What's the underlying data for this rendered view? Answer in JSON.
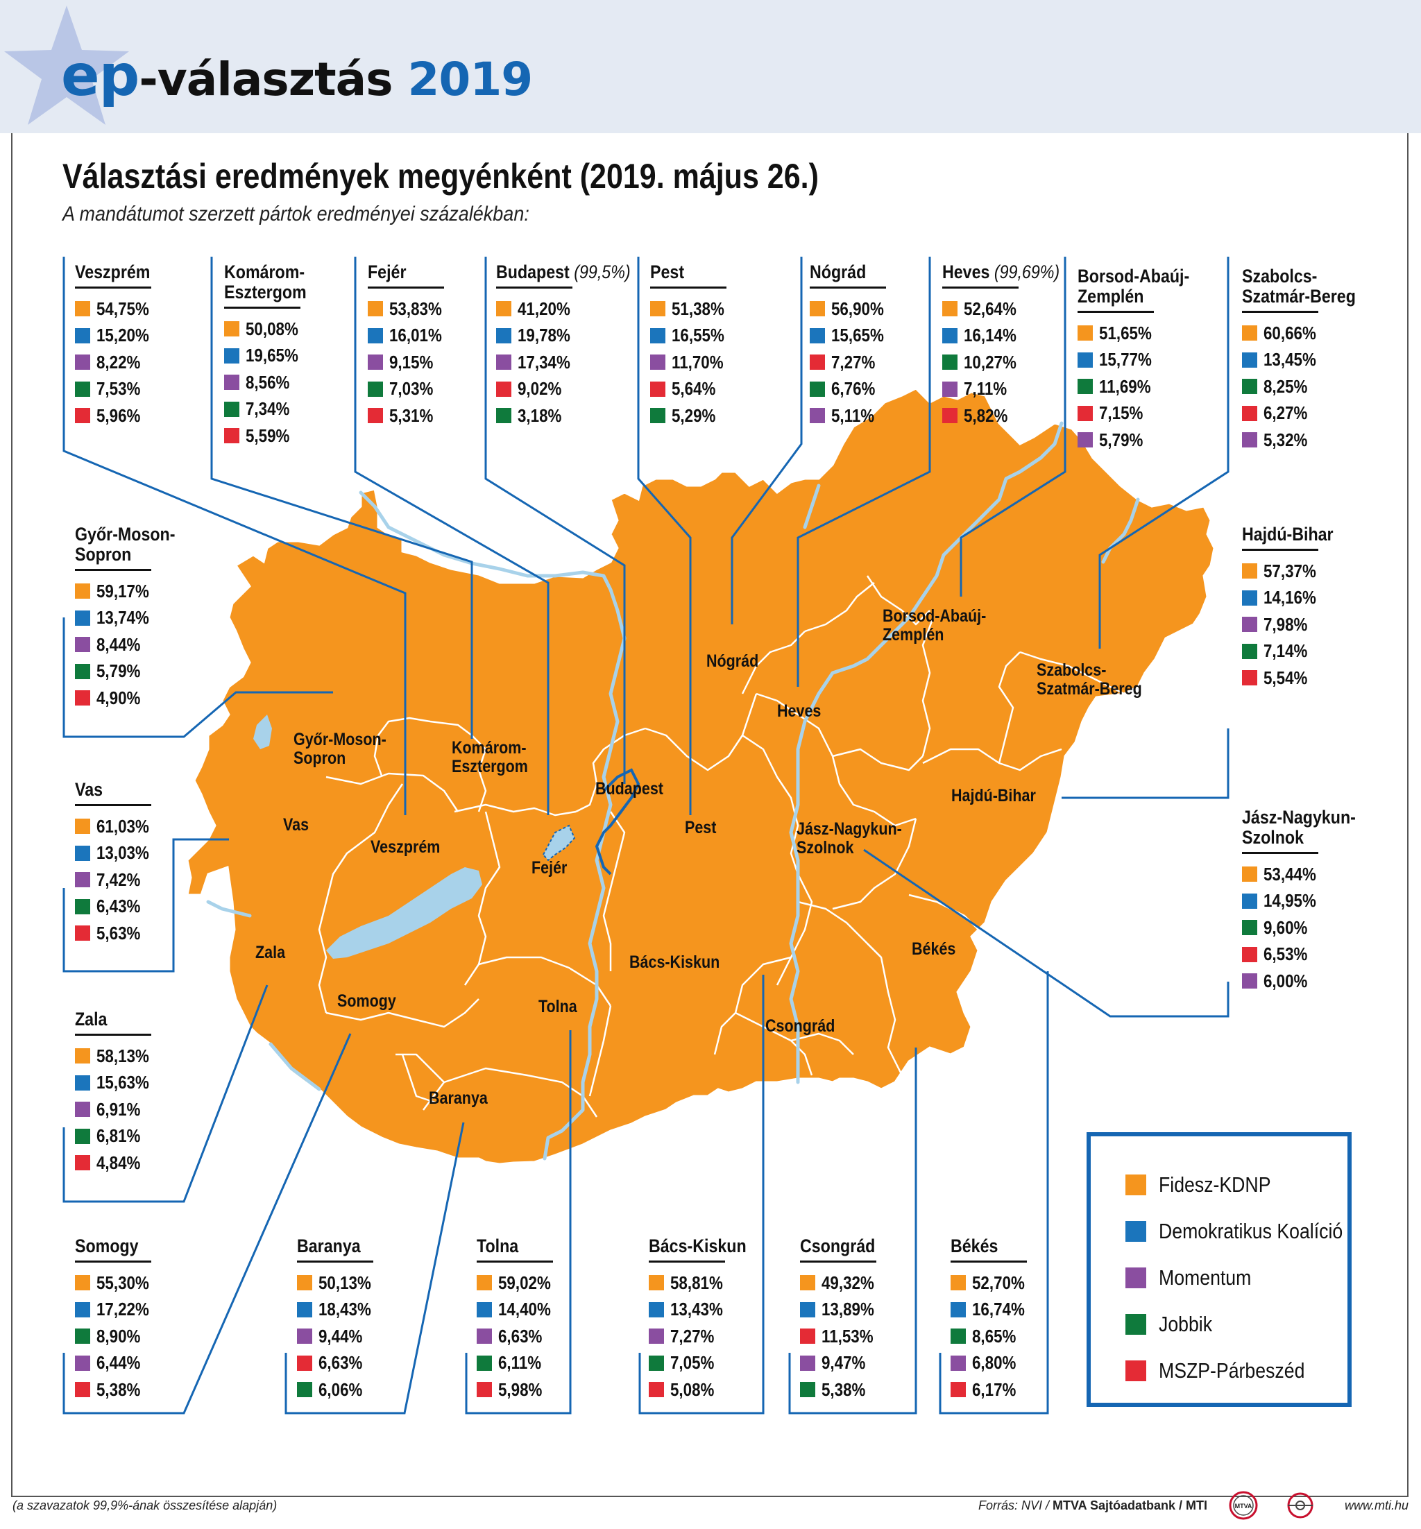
{
  "header": {
    "logo_ep": "ep",
    "logo_rest": "-választás",
    "logo_year": "2019"
  },
  "title": "Választási eredmények megyénként (2019. május 26.)",
  "subtitle": "A mandátumot szerzett pártok eredményei százalékban:",
  "colors": {
    "fidesz": "#f5951e",
    "dk": "#1b75bc",
    "momentum": "#8a4ea0",
    "jobbik": "#0f7a3c",
    "mszp": "#e42b35",
    "map_fill": "#f5951e",
    "river": "#a8d2ea",
    "line": "#1566b3"
  },
  "legend": [
    {
      "party": "fidesz",
      "label": "Fidesz-KDNP"
    },
    {
      "party": "dk",
      "label": "Demokratikus Koalíció"
    },
    {
      "party": "momentum",
      "label": "Momentum"
    },
    {
      "party": "jobbik",
      "label": "Jobbik"
    },
    {
      "party": "mszp",
      "label": "MSZP-Párbeszéd"
    }
  ],
  "counties": [
    {
      "id": "veszprem",
      "name": "Veszprém",
      "note": "",
      "results": [
        {
          "party": "fidesz",
          "value": "54,75%"
        },
        {
          "party": "dk",
          "value": "15,20%"
        },
        {
          "party": "momentum",
          "value": "8,22%"
        },
        {
          "party": "jobbik",
          "value": "7,53%"
        },
        {
          "party": "mszp",
          "value": "5,96%"
        }
      ]
    },
    {
      "id": "komarom",
      "name": "Komárom-\nEsztergom",
      "note": "",
      "results": [
        {
          "party": "fidesz",
          "value": "50,08%"
        },
        {
          "party": "dk",
          "value": "19,65%"
        },
        {
          "party": "momentum",
          "value": "8,56%"
        },
        {
          "party": "jobbik",
          "value": "7,34%"
        },
        {
          "party": "mszp",
          "value": "5,59%"
        }
      ]
    },
    {
      "id": "fejer",
      "name": "Fejér",
      "note": "",
      "results": [
        {
          "party": "fidesz",
          "value": "53,83%"
        },
        {
          "party": "dk",
          "value": "16,01%"
        },
        {
          "party": "momentum",
          "value": "9,15%"
        },
        {
          "party": "jobbik",
          "value": "7,03%"
        },
        {
          "party": "mszp",
          "value": "5,31%"
        }
      ]
    },
    {
      "id": "budapest",
      "name": "Budapest",
      "note": "(99,5%)",
      "results": [
        {
          "party": "fidesz",
          "value": "41,20%"
        },
        {
          "party": "dk",
          "value": "19,78%"
        },
        {
          "party": "momentum",
          "value": "17,34%"
        },
        {
          "party": "mszp",
          "value": "9,02%"
        },
        {
          "party": "jobbik",
          "value": "3,18%"
        }
      ]
    },
    {
      "id": "pest",
      "name": "Pest",
      "note": "",
      "results": [
        {
          "party": "fidesz",
          "value": "51,38%"
        },
        {
          "party": "dk",
          "value": "16,55%"
        },
        {
          "party": "momentum",
          "value": "11,70%"
        },
        {
          "party": "mszp",
          "value": "5,64%"
        },
        {
          "party": "jobbik",
          "value": "5,29%"
        }
      ]
    },
    {
      "id": "nograd",
      "name": "Nógrád",
      "note": "",
      "results": [
        {
          "party": "fidesz",
          "value": "56,90%"
        },
        {
          "party": "dk",
          "value": "15,65%"
        },
        {
          "party": "mszp",
          "value": "7,27%"
        },
        {
          "party": "jobbik",
          "value": "6,76%"
        },
        {
          "party": "momentum",
          "value": "5,11%"
        }
      ]
    },
    {
      "id": "heves",
      "name": "Heves",
      "note": "(99,69%)",
      "results": [
        {
          "party": "fidesz",
          "value": "52,64%"
        },
        {
          "party": "dk",
          "value": "16,14%"
        },
        {
          "party": "jobbik",
          "value": "10,27%"
        },
        {
          "party": "momentum",
          "value": "7,11%"
        },
        {
          "party": "mszp",
          "value": "5,82%"
        }
      ]
    },
    {
      "id": "borsod",
      "name": "Borsod-Abaúj-\nZemplén",
      "note": "",
      "results": [
        {
          "party": "fidesz",
          "value": "51,65%"
        },
        {
          "party": "dk",
          "value": "15,77%"
        },
        {
          "party": "jobbik",
          "value": "11,69%"
        },
        {
          "party": "mszp",
          "value": "7,15%"
        },
        {
          "party": "momentum",
          "value": "5,79%"
        }
      ]
    },
    {
      "id": "szabolcs",
      "name": "Szabolcs-\nSzatmár-Bereg",
      "note": "",
      "results": [
        {
          "party": "fidesz",
          "value": "60,66%"
        },
        {
          "party": "dk",
          "value": "13,45%"
        },
        {
          "party": "jobbik",
          "value": "8,25%"
        },
        {
          "party": "mszp",
          "value": "6,27%"
        },
        {
          "party": "momentum",
          "value": "5,32%"
        }
      ]
    },
    {
      "id": "gyor",
      "name": "Győr-Moson-\nSopron",
      "note": "",
      "results": [
        {
          "party": "fidesz",
          "value": "59,17%"
        },
        {
          "party": "dk",
          "value": "13,74%"
        },
        {
          "party": "momentum",
          "value": "8,44%"
        },
        {
          "party": "jobbik",
          "value": "5,79%"
        },
        {
          "party": "mszp",
          "value": "4,90%"
        }
      ]
    },
    {
      "id": "hajdu",
      "name": "Hajdú-Bihar",
      "note": "",
      "results": [
        {
          "party": "fidesz",
          "value": "57,37%"
        },
        {
          "party": "dk",
          "value": "14,16%"
        },
        {
          "party": "momentum",
          "value": "7,98%"
        },
        {
          "party": "jobbik",
          "value": "7,14%"
        },
        {
          "party": "mszp",
          "value": "5,54%"
        }
      ]
    },
    {
      "id": "vas",
      "name": "Vas",
      "note": "",
      "results": [
        {
          "party": "fidesz",
          "value": "61,03%"
        },
        {
          "party": "dk",
          "value": "13,03%"
        },
        {
          "party": "momentum",
          "value": "7,42%"
        },
        {
          "party": "jobbik",
          "value": "6,43%"
        },
        {
          "party": "mszp",
          "value": "5,63%"
        }
      ]
    },
    {
      "id": "jasz",
      "name": "Jász-Nagykun-\nSzolnok",
      "note": "",
      "results": [
        {
          "party": "fidesz",
          "value": "53,44%"
        },
        {
          "party": "dk",
          "value": "14,95%"
        },
        {
          "party": "jobbik",
          "value": "9,60%"
        },
        {
          "party": "mszp",
          "value": "6,53%"
        },
        {
          "party": "momentum",
          "value": "6,00%"
        }
      ]
    },
    {
      "id": "zala",
      "name": "Zala",
      "note": "",
      "results": [
        {
          "party": "fidesz",
          "value": "58,13%"
        },
        {
          "party": "dk",
          "value": "15,63%"
        },
        {
          "party": "momentum",
          "value": "6,91%"
        },
        {
          "party": "jobbik",
          "value": "6,81%"
        },
        {
          "party": "mszp",
          "value": "4,84%"
        }
      ]
    },
    {
      "id": "somogy",
      "name": "Somogy",
      "note": "",
      "results": [
        {
          "party": "fidesz",
          "value": "55,30%"
        },
        {
          "party": "dk",
          "value": "17,22%"
        },
        {
          "party": "jobbik",
          "value": "8,90%"
        },
        {
          "party": "momentum",
          "value": "6,44%"
        },
        {
          "party": "mszp",
          "value": "5,38%"
        }
      ]
    },
    {
      "id": "baranya",
      "name": "Baranya",
      "note": "",
      "results": [
        {
          "party": "fidesz",
          "value": "50,13%"
        },
        {
          "party": "dk",
          "value": "18,43%"
        },
        {
          "party": "momentum",
          "value": "9,44%"
        },
        {
          "party": "mszp",
          "value": "6,63%"
        },
        {
          "party": "jobbik",
          "value": "6,06%"
        }
      ]
    },
    {
      "id": "tolna",
      "name": "Tolna",
      "note": "",
      "results": [
        {
          "party": "fidesz",
          "value": "59,02%"
        },
        {
          "party": "dk",
          "value": "14,40%"
        },
        {
          "party": "momentum",
          "value": "6,63%"
        },
        {
          "party": "jobbik",
          "value": "6,11%"
        },
        {
          "party": "mszp",
          "value": "5,98%"
        }
      ]
    },
    {
      "id": "bacs",
      "name": "Bács-Kiskun",
      "note": "",
      "results": [
        {
          "party": "fidesz",
          "value": "58,81%"
        },
        {
          "party": "dk",
          "value": "13,43%"
        },
        {
          "party": "momentum",
          "value": "7,27%"
        },
        {
          "party": "jobbik",
          "value": "7,05%"
        },
        {
          "party": "mszp",
          "value": "5,08%"
        }
      ]
    },
    {
      "id": "csongrad",
      "name": "Csongrád",
      "note": "",
      "results": [
        {
          "party": "fidesz",
          "value": "49,32%"
        },
        {
          "party": "dk",
          "value": "13,89%"
        },
        {
          "party": "mszp",
          "value": "11,53%"
        },
        {
          "party": "momentum",
          "value": "9,47%"
        },
        {
          "party": "jobbik",
          "value": "5,38%"
        }
      ]
    },
    {
      "id": "bekes",
      "name": "Békés",
      "note": "",
      "results": [
        {
          "party": "fidesz",
          "value": "52,70%"
        },
        {
          "party": "dk",
          "value": "16,74%"
        },
        {
          "party": "jobbik",
          "value": "8,65%"
        },
        {
          "party": "momentum",
          "value": "6,80%"
        },
        {
          "party": "mszp",
          "value": "6,17%"
        }
      ]
    }
  ],
  "map_labels": {
    "gyor": "Győr-Moson-\nSopron",
    "komarom": "Komárom-\nEsztergom",
    "budapest": "Budapest",
    "nograd": "Nógrád",
    "borsod": "Borsod-Abaúj-\nZemplén",
    "szabolcs": "Szabolcs-\nSzatmár-Bereg",
    "heves": "Heves",
    "vas": "Vas",
    "veszprem": "Veszprém",
    "fejer": "Fejér",
    "pest": "Pest",
    "jasz": "Jász-Nagykun-\nSzolnok",
    "hajdu": "Hajdú-Bihar",
    "zala": "Zala",
    "somogy": "Somogy",
    "tolna": "Tolna",
    "bacs": "Bács-Kiskun",
    "bekes": "Békés",
    "csongrad": "Csongrád",
    "baranya": "Baranya"
  },
  "footer": {
    "note": "(a szavazatok 99,9%-ának összesítése alapján)",
    "source_prefix": "Forrás: NVI / ",
    "source_bold": "MTVA Sajtóadatbank / MTI",
    "website": "www.mti.hu",
    "mti_badge": "MTVA"
  }
}
